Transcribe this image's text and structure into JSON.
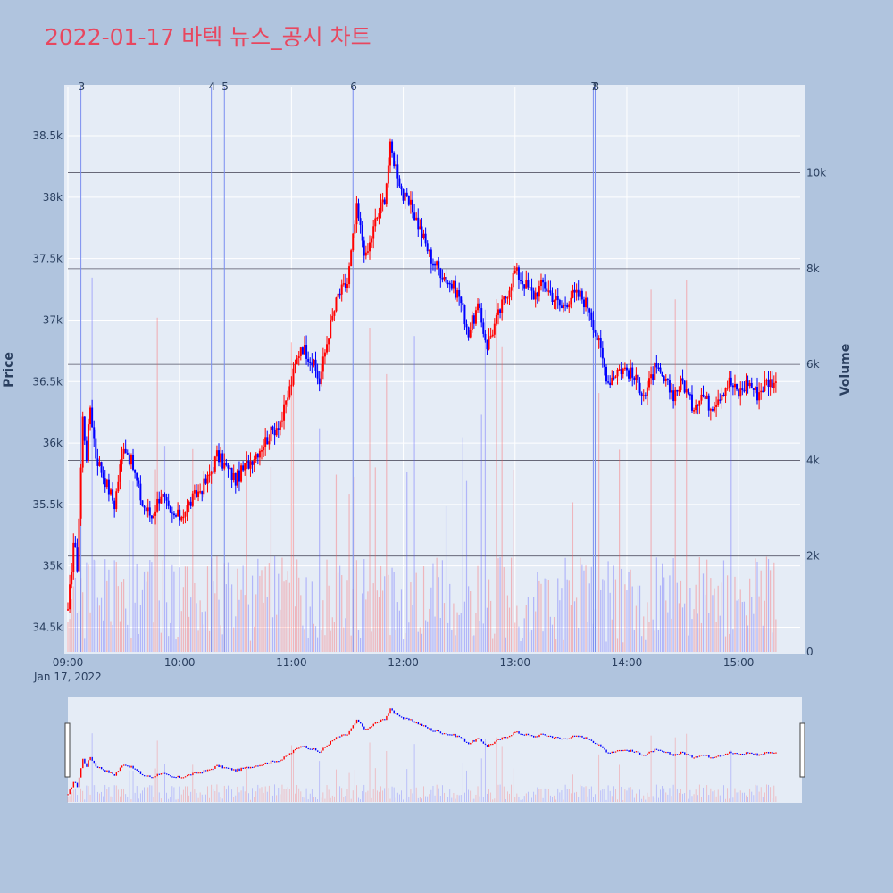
{
  "chart_data": {
    "type": "candlestick",
    "title": "2022-01-17 바텍 뉴스_공시 차트",
    "date_label": "Jan 17, 2022",
    "ylabel": "Price",
    "y2label": "Volume",
    "ylim": [
      34300,
      38900
    ],
    "y2lim": [
      0,
      11800
    ],
    "xlim_minutes": [
      540,
      933
    ],
    "x_ticks": [
      "09:00",
      "10:00",
      "11:00",
      "12:00",
      "13:00",
      "14:00",
      "15:00"
    ],
    "y_ticks": [
      "34.5k",
      "35k",
      "35.5k",
      "36k",
      "36.5k",
      "37k",
      "37.5k",
      "38k",
      "38.5k"
    ],
    "y2_ticks": [
      "0",
      "2k",
      "4k",
      "6k",
      "8k",
      "10k"
    ],
    "up_color": "#ff0000",
    "down_color": "#0000ff",
    "news_markers": [
      {
        "label": "3",
        "time": "09:07"
      },
      {
        "label": "4",
        "time": "10:17"
      },
      {
        "label": "5",
        "time": "10:24"
      },
      {
        "label": "6",
        "time": "11:33"
      },
      {
        "label": "7",
        "time": "13:42"
      },
      {
        "label": "8",
        "time": "13:43"
      }
    ],
    "price_path": [
      [
        "09:00",
        34600
      ],
      [
        "09:03",
        35200
      ],
      [
        "09:05",
        35000
      ],
      [
        "09:07",
        35800
      ],
      [
        "09:08",
        36200
      ],
      [
        "09:10",
        35900
      ],
      [
        "09:12",
        36300
      ],
      [
        "09:15",
        35900
      ],
      [
        "09:20",
        35700
      ],
      [
        "09:25",
        35500
      ],
      [
        "09:30",
        36000
      ],
      [
        "09:35",
        35800
      ],
      [
        "09:40",
        35500
      ],
      [
        "09:45",
        35400
      ],
      [
        "09:50",
        35600
      ],
      [
        "09:55",
        35400
      ],
      [
        "10:00",
        35400
      ],
      [
        "10:05",
        35500
      ],
      [
        "10:10",
        35600
      ],
      [
        "10:15",
        35700
      ],
      [
        "10:20",
        35900
      ],
      [
        "10:25",
        35800
      ],
      [
        "10:30",
        35700
      ],
      [
        "10:35",
        35800
      ],
      [
        "10:40",
        35900
      ],
      [
        "10:45",
        36000
      ],
      [
        "10:50",
        36100
      ],
      [
        "10:55",
        36200
      ],
      [
        "11:00",
        36500
      ],
      [
        "11:05",
        36800
      ],
      [
        "11:10",
        36700
      ],
      [
        "11:15",
        36500
      ],
      [
        "11:20",
        36900
      ],
      [
        "11:25",
        37200
      ],
      [
        "11:30",
        37300
      ],
      [
        "11:35",
        37900
      ],
      [
        "11:40",
        37500
      ],
      [
        "11:45",
        37800
      ],
      [
        "11:50",
        38000
      ],
      [
        "11:53",
        38400
      ],
      [
        "11:57",
        38200
      ],
      [
        "12:00",
        38000
      ],
      [
        "12:05",
        37900
      ],
      [
        "12:10",
        37700
      ],
      [
        "12:15",
        37500
      ],
      [
        "12:20",
        37400
      ],
      [
        "12:25",
        37300
      ],
      [
        "12:30",
        37200
      ],
      [
        "12:35",
        36900
      ],
      [
        "12:40",
        37100
      ],
      [
        "12:45",
        36800
      ],
      [
        "12:50",
        37000
      ],
      [
        "12:55",
        37200
      ],
      [
        "13:00",
        37400
      ],
      [
        "13:05",
        37300
      ],
      [
        "13:10",
        37200
      ],
      [
        "13:15",
        37300
      ],
      [
        "13:20",
        37200
      ],
      [
        "13:25",
        37100
      ],
      [
        "13:30",
        37200
      ],
      [
        "13:35",
        37200
      ],
      [
        "13:40",
        37100
      ],
      [
        "13:45",
        36800
      ],
      [
        "13:50",
        36500
      ],
      [
        "13:55",
        36600
      ],
      [
        "14:00",
        36600
      ],
      [
        "14:05",
        36500
      ],
      [
        "14:10",
        36400
      ],
      [
        "14:15",
        36600
      ],
      [
        "14:20",
        36500
      ],
      [
        "14:25",
        36400
      ],
      [
        "14:30",
        36500
      ],
      [
        "14:35",
        36300
      ],
      [
        "14:40",
        36400
      ],
      [
        "14:45",
        36300
      ],
      [
        "14:50",
        36400
      ],
      [
        "14:55",
        36500
      ],
      [
        "15:00",
        36400
      ],
      [
        "15:05",
        36500
      ],
      [
        "15:10",
        36400
      ],
      [
        "15:15",
        36500
      ],
      [
        "15:20",
        36500
      ]
    ]
  }
}
